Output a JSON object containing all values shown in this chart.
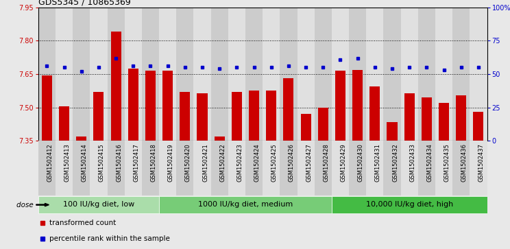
{
  "title": "GDS5345 / 10865369",
  "samples": [
    "GSM1502412",
    "GSM1502413",
    "GSM1502414",
    "GSM1502415",
    "GSM1502416",
    "GSM1502417",
    "GSM1502418",
    "GSM1502419",
    "GSM1502420",
    "GSM1502421",
    "GSM1502422",
    "GSM1502423",
    "GSM1502424",
    "GSM1502425",
    "GSM1502426",
    "GSM1502427",
    "GSM1502428",
    "GSM1502429",
    "GSM1502430",
    "GSM1502431",
    "GSM1502432",
    "GSM1502433",
    "GSM1502434",
    "GSM1502435",
    "GSM1502436",
    "GSM1502437"
  ],
  "bar_values": [
    7.645,
    7.505,
    7.37,
    7.57,
    7.84,
    7.675,
    7.665,
    7.665,
    7.57,
    7.565,
    7.37,
    7.57,
    7.575,
    7.575,
    7.63,
    7.47,
    7.5,
    7.665,
    7.67,
    7.595,
    7.435,
    7.565,
    7.545,
    7.52,
    7.555,
    7.48
  ],
  "percentile_values": [
    56,
    55,
    52,
    55,
    62,
    56,
    56,
    56,
    55,
    55,
    54,
    55,
    55,
    55,
    56,
    55,
    55,
    61,
    62,
    55,
    54,
    55,
    55,
    53,
    55,
    55
  ],
  "ylim_left": [
    7.35,
    7.95
  ],
  "ylim_right": [
    0,
    100
  ],
  "yticks_left": [
    7.35,
    7.5,
    7.65,
    7.8,
    7.95
  ],
  "yticks_right": [
    0,
    25,
    50,
    75,
    100
  ],
  "ytick_labels_left": [
    "7.35",
    "7.50",
    "7.65",
    "7.80",
    "7.95"
  ],
  "ytick_labels_right": [
    "0",
    "25",
    "50",
    "75",
    "100%"
  ],
  "hlines": [
    7.5,
    7.65,
    7.8
  ],
  "bar_color": "#cc0000",
  "dot_color": "#0000cc",
  "bar_width": 0.6,
  "groups": [
    {
      "label": "100 IU/kg diet, low",
      "start": 0,
      "end": 7,
      "color": "#aaddaa"
    },
    {
      "label": "1000 IU/kg diet, medium",
      "start": 7,
      "end": 17,
      "color": "#77cc77"
    },
    {
      "label": "10,000 IU/kg diet, high",
      "start": 17,
      "end": 26,
      "color": "#44bb44"
    }
  ],
  "dose_label": "dose",
  "legend_items": [
    {
      "label": "transformed count",
      "color": "#cc0000"
    },
    {
      "label": "percentile rank within the sample",
      "color": "#0000cc"
    }
  ],
  "fig_bg": "#e8e8e8",
  "plot_bg": "#ffffff",
  "col_colors": [
    "#cccccc",
    "#e0e0e0"
  ],
  "title_fontsize": 9,
  "tick_fontsize": 7,
  "xtick_fontsize": 6,
  "group_label_fontsize": 8,
  "legend_fontsize": 7.5
}
